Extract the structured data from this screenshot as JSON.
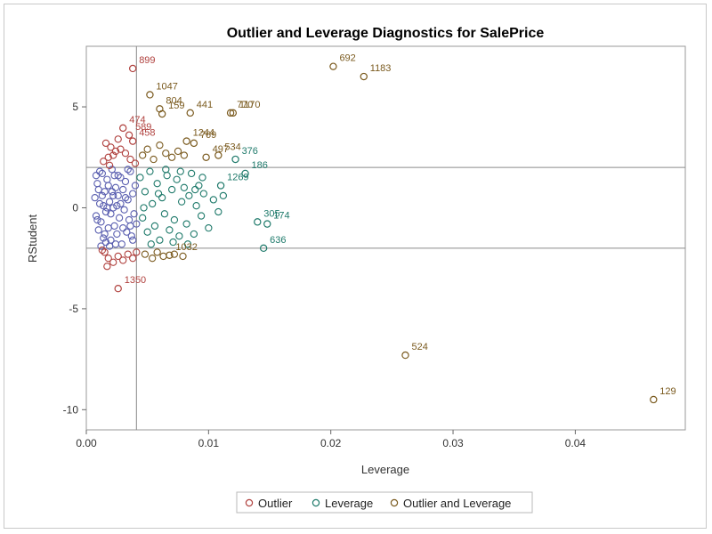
{
  "chart_data": {
    "type": "scatter",
    "title": "Outlier and Leverage Diagnostics for SalePrice",
    "xlabel": "Leverage",
    "ylabel": "RStudent",
    "xlim": [
      0,
      0.049
    ],
    "ylim": [
      -11,
      8
    ],
    "xticks": [
      0.0,
      0.01,
      0.02,
      0.03,
      0.04
    ],
    "xtick_labels": [
      "0.00",
      "0.01",
      "0.02",
      "0.03",
      "0.04"
    ],
    "yticks": [
      -10,
      -5,
      0,
      5
    ],
    "ytick_labels": [
      "-10",
      "-5",
      "0",
      "5"
    ],
    "reference_lines": {
      "x": [
        0.0041
      ],
      "y": [
        2,
        -2
      ]
    },
    "grid": false,
    "legend_position": "bottom",
    "colors": {
      "normal": "#5a5fb0",
      "outlier": "#b0413e",
      "leverage": "#1f7a6b",
      "outlier_leverage": "#7a5a1e"
    },
    "legend": [
      {
        "key": "outlier",
        "label": "Outlier"
      },
      {
        "key": "leverage",
        "label": "Leverage"
      },
      {
        "key": "outlier_leverage",
        "label": "Outlier and Leverage"
      }
    ],
    "labeled_points": {
      "outlier": [
        {
          "x": 0.0038,
          "y": 6.9,
          "label": "899"
        },
        {
          "x": 0.003,
          "y": 3.95,
          "label": "474"
        },
        {
          "x": 0.0035,
          "y": 3.6,
          "label": "589"
        },
        {
          "x": 0.0038,
          "y": 3.3,
          "label": "458"
        },
        {
          "x": 0.0026,
          "y": -4.0,
          "label": "1350"
        }
      ],
      "leverage": [
        {
          "x": 0.011,
          "y": 1.1,
          "label": "1269"
        },
        {
          "x": 0.013,
          "y": 1.7,
          "label": "186"
        },
        {
          "x": 0.0122,
          "y": 2.4,
          "label": "376"
        },
        {
          "x": 0.014,
          "y": -0.7,
          "label": "305"
        },
        {
          "x": 0.0148,
          "y": -0.8,
          "label": "174"
        },
        {
          "x": 0.0145,
          "y": -2.0,
          "label": "636"
        }
      ],
      "outlier_leverage": [
        {
          "x": 0.0202,
          "y": 7.0,
          "label": "692"
        },
        {
          "x": 0.0227,
          "y": 6.5,
          "label": "1183"
        },
        {
          "x": 0.006,
          "y": 4.9,
          "label": "804"
        },
        {
          "x": 0.0052,
          "y": 5.6,
          "label": "1047"
        },
        {
          "x": 0.0085,
          "y": 4.7,
          "label": "441"
        },
        {
          "x": 0.0062,
          "y": 4.65,
          "label": "159"
        },
        {
          "x": 0.0118,
          "y": 4.7,
          "label": "770"
        },
        {
          "x": 0.012,
          "y": 4.7,
          "label": "1170"
        },
        {
          "x": 0.0082,
          "y": 3.3,
          "label": "1244"
        },
        {
          "x": 0.0088,
          "y": 3.2,
          "label": "769"
        },
        {
          "x": 0.0098,
          "y": 2.5,
          "label": "497"
        },
        {
          "x": 0.0108,
          "y": 2.6,
          "label": "534"
        },
        {
          "x": 0.0261,
          "y": -7.3,
          "label": "524"
        },
        {
          "x": 0.0464,
          "y": -9.5,
          "label": "129"
        },
        {
          "x": 0.0068,
          "y": -2.35,
          "label": "1032"
        }
      ]
    },
    "cloud_points": {
      "normal": [
        [
          0.0007,
          0.5
        ],
        [
          0.0008,
          -0.4
        ],
        [
          0.0009,
          1.2
        ],
        [
          0.001,
          -1.1
        ],
        [
          0.0011,
          0.2
        ],
        [
          0.0012,
          -0.7
        ],
        [
          0.0013,
          1.7
        ],
        [
          0.0014,
          -1.5
        ],
        [
          0.0015,
          0.8
        ],
        [
          0.0016,
          -0.2
        ],
        [
          0.0017,
          1.4
        ],
        [
          0.0018,
          -1.0
        ],
        [
          0.0019,
          0.3
        ],
        [
          0.002,
          -1.6
        ],
        [
          0.0021,
          1.9
        ],
        [
          0.0022,
          0.0
        ],
        [
          0.0023,
          -0.9
        ],
        [
          0.0024,
          1.0
        ],
        [
          0.0025,
          -1.3
        ],
        [
          0.0026,
          0.6
        ],
        [
          0.0027,
          -0.5
        ],
        [
          0.0028,
          1.5
        ],
        [
          0.0029,
          -1.8
        ],
        [
          0.003,
          0.9
        ],
        [
          0.0031,
          -0.1
        ],
        [
          0.0032,
          1.3
        ],
        [
          0.0033,
          -1.2
        ],
        [
          0.0034,
          0.4
        ],
        [
          0.0035,
          -0.6
        ],
        [
          0.0036,
          1.8
        ],
        [
          0.0037,
          -1.4
        ],
        [
          0.0038,
          0.7
        ],
        [
          0.0039,
          -0.3
        ],
        [
          0.004,
          1.1
        ],
        [
          0.0041,
          -0.8
        ],
        [
          0.0008,
          1.6
        ],
        [
          0.001,
          0.9
        ],
        [
          0.0012,
          -1.9
        ],
        [
          0.0014,
          0.1
        ],
        [
          0.0016,
          -1.7
        ],
        [
          0.0018,
          1.1
        ],
        [
          0.002,
          -0.3
        ],
        [
          0.0022,
          0.6
        ],
        [
          0.0024,
          -1.8
        ],
        [
          0.0026,
          1.6
        ],
        [
          0.0028,
          0.2
        ],
        [
          0.003,
          -1.0
        ],
        [
          0.0032,
          0.5
        ],
        [
          0.0034,
          1.9
        ],
        [
          0.0036,
          -0.9
        ],
        [
          0.0038,
          -1.6
        ],
        [
          0.0009,
          -0.6
        ],
        [
          0.0011,
          1.8
        ],
        [
          0.0013,
          0.6
        ],
        [
          0.0015,
          -1.3
        ],
        [
          0.0017,
          0.0
        ],
        [
          0.0019,
          -1.9
        ],
        [
          0.0021,
          0.8
        ],
        [
          0.0023,
          1.6
        ],
        [
          0.0025,
          0.1
        ]
      ],
      "outlier": [
        [
          0.0016,
          3.2
        ],
        [
          0.002,
          3.0
        ],
        [
          0.0024,
          2.8
        ],
        [
          0.0018,
          2.5
        ],
        [
          0.0014,
          2.3
        ],
        [
          0.0022,
          2.6
        ],
        [
          0.0028,
          2.9
        ],
        [
          0.0032,
          2.7
        ],
        [
          0.0036,
          2.4
        ],
        [
          0.004,
          2.2
        ],
        [
          0.0026,
          3.4
        ],
        [
          0.0019,
          2.1
        ],
        [
          0.0015,
          -2.2
        ],
        [
          0.0018,
          -2.5
        ],
        [
          0.0022,
          -2.7
        ],
        [
          0.0026,
          -2.4
        ],
        [
          0.003,
          -2.6
        ],
        [
          0.0034,
          -2.3
        ],
        [
          0.0038,
          -2.5
        ],
        [
          0.0017,
          -2.9
        ],
        [
          0.0013,
          -2.1
        ],
        [
          0.0041,
          -2.2
        ]
      ],
      "leverage": [
        [
          0.0044,
          1.5
        ],
        [
          0.0046,
          -0.5
        ],
        [
          0.0048,
          0.8
        ],
        [
          0.005,
          -1.2
        ],
        [
          0.0052,
          1.8
        ],
        [
          0.0054,
          0.2
        ],
        [
          0.0056,
          -0.9
        ],
        [
          0.0058,
          1.2
        ],
        [
          0.006,
          -1.6
        ],
        [
          0.0062,
          0.5
        ],
        [
          0.0064,
          -0.3
        ],
        [
          0.0066,
          1.6
        ],
        [
          0.0068,
          -1.1
        ],
        [
          0.007,
          0.9
        ],
        [
          0.0072,
          -0.6
        ],
        [
          0.0074,
          1.4
        ],
        [
          0.0076,
          -1.4
        ],
        [
          0.0078,
          0.3
        ],
        [
          0.008,
          1.0
        ],
        [
          0.0082,
          -0.8
        ],
        [
          0.0084,
          0.6
        ],
        [
          0.0086,
          1.7
        ],
        [
          0.0088,
          -1.3
        ],
        [
          0.009,
          0.1
        ],
        [
          0.0092,
          1.1
        ],
        [
          0.0094,
          -0.4
        ],
        [
          0.0096,
          0.7
        ],
        [
          0.01,
          -1.0
        ],
        [
          0.0104,
          0.4
        ],
        [
          0.0108,
          -0.2
        ],
        [
          0.0047,
          0.0
        ],
        [
          0.0053,
          -1.8
        ],
        [
          0.0059,
          0.7
        ],
        [
          0.0065,
          1.9
        ],
        [
          0.0071,
          -1.7
        ],
        [
          0.0077,
          1.8
        ],
        [
          0.0083,
          -1.8
        ],
        [
          0.0089,
          0.9
        ],
        [
          0.0095,
          1.5
        ],
        [
          0.0112,
          0.6
        ]
      ],
      "outlier_leverage": [
        [
          0.0046,
          2.6
        ],
        [
          0.005,
          2.9
        ],
        [
          0.0055,
          2.4
        ],
        [
          0.006,
          3.1
        ],
        [
          0.0065,
          2.7
        ],
        [
          0.007,
          2.5
        ],
        [
          0.0075,
          2.8
        ],
        [
          0.008,
          2.6
        ],
        [
          0.0048,
          -2.3
        ],
        [
          0.0054,
          -2.5
        ],
        [
          0.0058,
          -2.2
        ],
        [
          0.0063,
          -2.4
        ],
        [
          0.0072,
          -2.3
        ],
        [
          0.0079,
          -2.4
        ]
      ]
    }
  }
}
